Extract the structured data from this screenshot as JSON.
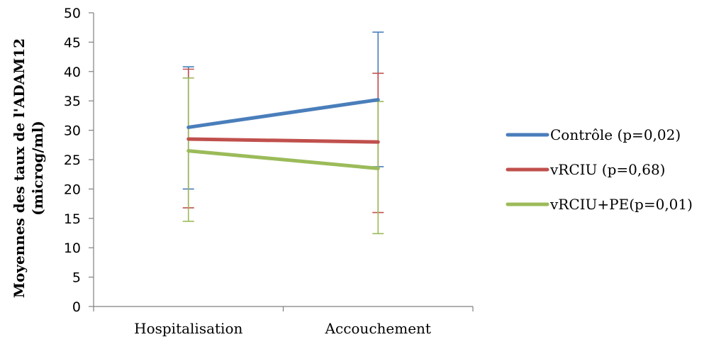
{
  "chart_data": {
    "type": "line",
    "categories": [
      "Hospitalisation",
      "Accouchement"
    ],
    "ylabel_lines": [
      "Moyennes des taux de l'ADAM12",
      "(microg/ml)"
    ],
    "ylim": [
      0,
      50
    ],
    "ytick_step": 5,
    "yticks": [
      "0",
      "5",
      "10",
      "15",
      "20",
      "25",
      "30",
      "35",
      "40",
      "45",
      "50"
    ],
    "grid": false,
    "legend_position": "right",
    "series": [
      {
        "name": "Contrôle (p=0,02)",
        "color": "#4a7ebb",
        "values": [
          30.5,
          35.2
        ],
        "error_low": [
          20.0,
          23.8
        ],
        "error_high": [
          40.8,
          46.7
        ]
      },
      {
        "name": "vRCIU (p=0,68)",
        "color": "#c0504d",
        "values": [
          28.5,
          28.0
        ],
        "error_low": [
          16.8,
          16.0
        ],
        "error_high": [
          40.4,
          39.7
        ]
      },
      {
        "name": "vRCIU+PE(p=0,01)",
        "color": "#9bbb59",
        "values": [
          26.5,
          23.5
        ],
        "error_low": [
          14.5,
          12.4
        ],
        "error_high": [
          38.9,
          34.9
        ]
      }
    ]
  }
}
